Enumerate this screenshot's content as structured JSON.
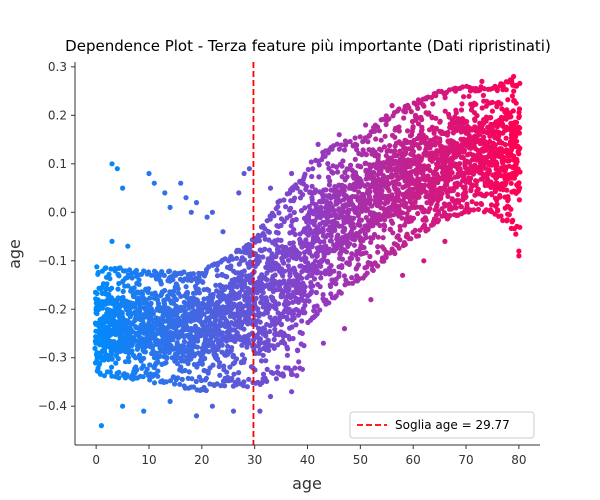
{
  "chart_data": {
    "type": "scatter",
    "title": "Dependence Plot - Terza feature più importante (Dati ripristinati)",
    "xlabel": "age",
    "ylabel": "age",
    "xlim": [
      -4,
      84
    ],
    "ylim": [
      -0.48,
      0.31
    ],
    "x_ticks": [
      0,
      10,
      20,
      30,
      40,
      50,
      60,
      70,
      80
    ],
    "y_ticks": [
      -0.4,
      -0.3,
      -0.2,
      -0.1,
      0.0,
      0.1,
      0.2,
      0.3
    ],
    "x_tick_labels": [
      "0",
      "10",
      "20",
      "30",
      "40",
      "50",
      "60",
      "70",
      "80"
    ],
    "y_tick_labels": [
      "−0.4",
      "−0.3",
      "−0.2",
      "−0.1",
      "0.0",
      "0.1",
      "0.2",
      "0.3"
    ],
    "grid": false,
    "color_gradient": {
      "low": "#008bfb",
      "mid": "#8a3fc8",
      "high": "#ff0052"
    },
    "threshold": {
      "x": 29.77,
      "color": "#ff0000",
      "style": "dashed",
      "label": "Soglia age = 29.77"
    },
    "legend": {
      "position": "bottom-right",
      "entries": [
        "Soglia age = 29.77"
      ]
    },
    "trend": [
      {
        "x": 0,
        "center": -0.23,
        "low": -0.34,
        "high": -0.11
      },
      {
        "x": 10,
        "center": -0.24,
        "low": -0.35,
        "high": -0.12
      },
      {
        "x": 20,
        "center": -0.24,
        "low": -0.37,
        "high": -0.12
      },
      {
        "x": 25,
        "center": -0.22,
        "low": -0.36,
        "high": -0.09
      },
      {
        "x": 30,
        "center": -0.18,
        "low": -0.36,
        "high": -0.05
      },
      {
        "x": 35,
        "center": -0.15,
        "low": -0.34,
        "high": 0.03
      },
      {
        "x": 39,
        "center": -0.12,
        "low": -0.34,
        "high": 0.07
      },
      {
        "x": 40,
        "center": -0.07,
        "low": -0.23,
        "high": 0.1
      },
      {
        "x": 45,
        "center": -0.03,
        "low": -0.18,
        "high": 0.14
      },
      {
        "x": 50,
        "center": 0.01,
        "low": -0.14,
        "high": 0.16
      },
      {
        "x": 55,
        "center": 0.05,
        "low": -0.1,
        "high": 0.2
      },
      {
        "x": 60,
        "center": 0.08,
        "low": -0.06,
        "high": 0.23
      },
      {
        "x": 65,
        "center": 0.1,
        "low": -0.02,
        "high": 0.25
      },
      {
        "x": 70,
        "center": 0.12,
        "low": 0.0,
        "high": 0.26
      },
      {
        "x": 75,
        "center": 0.12,
        "low": 0.0,
        "high": 0.26
      },
      {
        "x": 80,
        "center": 0.12,
        "low": -0.05,
        "high": 0.28
      }
    ],
    "outliers": [
      {
        "x": 3,
        "y": 0.1
      },
      {
        "x": 4,
        "y": 0.09
      },
      {
        "x": 5,
        "y": 0.05
      },
      {
        "x": 10,
        "y": 0.08
      },
      {
        "x": 11,
        "y": 0.06
      },
      {
        "x": 13,
        "y": 0.04
      },
      {
        "x": 14,
        "y": 0.01
      },
      {
        "x": 16,
        "y": 0.06
      },
      {
        "x": 17,
        "y": 0.03
      },
      {
        "x": 18,
        "y": 0.0
      },
      {
        "x": 19,
        "y": 0.02
      },
      {
        "x": 21,
        "y": -0.01
      },
      {
        "x": 22,
        "y": 0.0
      },
      {
        "x": 24,
        "y": -0.04
      },
      {
        "x": 27,
        "y": 0.04
      },
      {
        "x": 28,
        "y": 0.08
      },
      {
        "x": 29,
        "y": 0.09
      },
      {
        "x": 6,
        "y": -0.07
      },
      {
        "x": 3,
        "y": -0.06
      },
      {
        "x": 1,
        "y": -0.44
      },
      {
        "x": 5,
        "y": -0.4
      },
      {
        "x": 9,
        "y": -0.41
      },
      {
        "x": 14,
        "y": -0.39
      },
      {
        "x": 19,
        "y": -0.42
      },
      {
        "x": 22,
        "y": -0.4
      },
      {
        "x": 26,
        "y": -0.41
      },
      {
        "x": 31,
        "y": -0.41
      },
      {
        "x": 33,
        "y": -0.38
      },
      {
        "x": 37,
        "y": -0.37
      },
      {
        "x": 43,
        "y": -0.27
      },
      {
        "x": 47,
        "y": -0.24
      },
      {
        "x": 52,
        "y": -0.18
      },
      {
        "x": 58,
        "y": -0.13
      },
      {
        "x": 62,
        "y": -0.1
      },
      {
        "x": 66,
        "y": -0.06
      },
      {
        "x": 80,
        "y": -0.08
      },
      {
        "x": 80,
        "y": -0.09
      },
      {
        "x": 79,
        "y": 0.28
      },
      {
        "x": 73,
        "y": 0.27
      },
      {
        "x": 68,
        "y": 0.25
      },
      {
        "x": 56,
        "y": 0.22
      },
      {
        "x": 51,
        "y": 0.18
      },
      {
        "x": 46,
        "y": 0.16
      },
      {
        "x": 42,
        "y": 0.14
      },
      {
        "x": 37,
        "y": 0.08
      },
      {
        "x": 33,
        "y": 0.05
      }
    ]
  }
}
